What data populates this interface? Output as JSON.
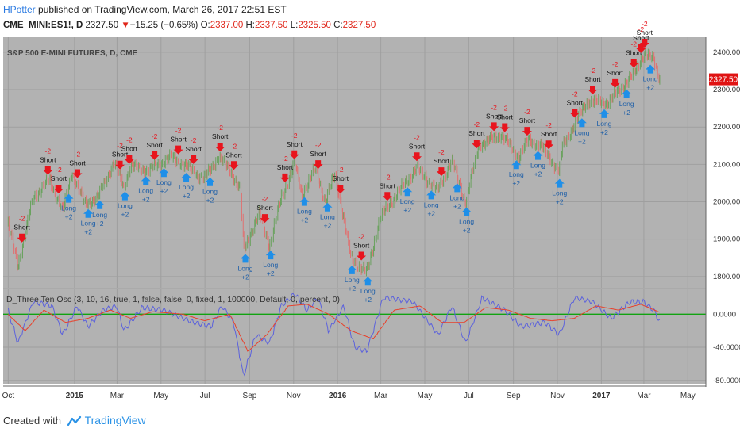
{
  "header": {
    "author": "HPotter",
    "published_text": " published on TradingView.com, March 26, 2017 22:51 EST",
    "symbol": "CME_MINI:ES1!, D",
    "last": "2327.50",
    "arrow": "▼",
    "change": "−15.25 (−0.65%)",
    "open_label": "O:",
    "open": "2337.00",
    "high_label": "H:",
    "high": "2337.50",
    "low_label": "L:",
    "low": "2325.50",
    "close_label": "C:",
    "close": "2327.50"
  },
  "footer": {
    "created_with": "Created with",
    "brand": "TradingView"
  },
  "colors": {
    "background": "#b2b2b2",
    "grid": "#9f9f9f",
    "up_candle": "#6aa25f",
    "down_candle": "#df7272",
    "short_signal": "#e8141d",
    "long_signal": "#1f8fe8",
    "osc_main": "#5c62dc",
    "osc_signal": "#e8402b",
    "zero_line": "#11a311",
    "price_tag": "#e01313"
  },
  "chart_data": [
    {
      "type": "candlestick",
      "title": "S&P 500 E-MINI FUTURES, D, CME",
      "y_ticks": [
        1800,
        1900,
        2000,
        2100,
        2200,
        2300,
        2400
      ],
      "y_tick_labels": [
        "1800.00",
        "1900.00",
        "2000.00",
        "2100.00",
        "2200.00",
        "2300.00",
        "2400.00"
      ],
      "ylim": [
        1770,
        2440
      ],
      "last_price_label": "2327.50",
      "x_tick_labels": [
        "Oct",
        "2015",
        "Mar",
        "May",
        "Jul",
        "Sep",
        "Nov",
        "2016",
        "Mar",
        "May",
        "Jul",
        "Sep",
        "Nov",
        "2017",
        "Mar",
        "May"
      ],
      "x_tick_dates": [
        "2014-10-01",
        "2015-01-01",
        "2015-03-01",
        "2015-05-01",
        "2015-07-01",
        "2015-09-01",
        "2015-11-01",
        "2016-01-01",
        "2016-03-01",
        "2016-05-01",
        "2016-07-01",
        "2016-09-01",
        "2016-11-01",
        "2017-01-01",
        "2017-03-01",
        "2017-05-01"
      ],
      "series": [
        {
          "points": [
            [
              "2014-10-01",
              1940
            ],
            [
              "2014-10-15",
              1830
            ],
            [
              "2014-11-05",
              2010
            ],
            [
              "2014-11-28",
              2060
            ],
            [
              "2014-12-16",
              1975
            ],
            [
              "2014-12-29",
              2080
            ],
            [
              "2015-01-15",
              1995
            ],
            [
              "2015-02-02",
              2010
            ],
            [
              "2015-02-25",
              2105
            ],
            [
              "2015-03-11",
              2040
            ],
            [
              "2015-03-20",
              2095
            ],
            [
              "2015-04-15",
              2085
            ],
            [
              "2015-05-15",
              2120
            ],
            [
              "2015-06-10",
              2090
            ],
            [
              "2015-06-30",
              2060
            ],
            [
              "2015-07-20",
              2120
            ],
            [
              "2015-08-05",
              2085
            ],
            [
              "2015-08-20",
              2030
            ],
            [
              "2015-08-24",
              1870
            ],
            [
              "2015-09-15",
              1970
            ],
            [
              "2015-09-29",
              1880
            ],
            [
              "2015-10-15",
              2010
            ],
            [
              "2015-11-03",
              2100
            ],
            [
              "2015-11-13",
              2020
            ],
            [
              "2015-12-02",
              2090
            ],
            [
              "2015-12-15",
              2000
            ],
            [
              "2015-12-29",
              2075
            ],
            [
              "2016-01-20",
              1850
            ],
            [
              "2016-02-11",
              1810
            ],
            [
              "2016-03-01",
              1960
            ],
            [
              "2016-03-31",
              2040
            ],
            [
              "2016-04-20",
              2090
            ],
            [
              "2016-05-19",
              2030
            ],
            [
              "2016-06-08",
              2110
            ],
            [
              "2016-06-27",
              1995
            ],
            [
              "2016-07-15",
              2150
            ],
            [
              "2016-08-15",
              2180
            ],
            [
              "2016-09-09",
              2120
            ],
            [
              "2016-09-22",
              2165
            ],
            [
              "2016-10-10",
              2150
            ],
            [
              "2016-11-04",
              2080
            ],
            [
              "2016-11-09",
              2150
            ],
            [
              "2016-12-13",
              2270
            ],
            [
              "2017-01-10",
              2265
            ],
            [
              "2017-02-15",
              2340
            ],
            [
              "2017-03-01",
              2395
            ],
            [
              "2017-03-15",
              2380
            ],
            [
              "2017-03-24",
              2327.5
            ]
          ]
        }
      ],
      "signals": [
        {
          "date": "2014-10-20",
          "type": "short",
          "text": "Short",
          "delta": "-2"
        },
        {
          "date": "2014-11-25",
          "type": "short",
          "text": "Short",
          "delta": "-2"
        },
        {
          "date": "2014-12-10",
          "type": "short",
          "text": "Short",
          "delta": "-2"
        },
        {
          "date": "2014-12-24",
          "type": "long",
          "text": "Long",
          "delta": "+2"
        },
        {
          "date": "2015-01-05",
          "type": "short",
          "text": "Short",
          "delta": "-2"
        },
        {
          "date": "2015-01-20",
          "type": "long",
          "text": "Long",
          "delta": "+2"
        },
        {
          "date": "2015-02-05",
          "type": "long",
          "text": "Long",
          "delta": "+2"
        },
        {
          "date": "2015-03-05",
          "type": "short",
          "text": "Short",
          "delta": "-2"
        },
        {
          "date": "2015-03-12",
          "type": "long",
          "text": "Long",
          "delta": "+2"
        },
        {
          "date": "2015-03-18",
          "type": "short",
          "text": "Short",
          "delta": "-2"
        },
        {
          "date": "2015-04-10",
          "type": "long",
          "text": "Long",
          "delta": "+2"
        },
        {
          "date": "2015-04-22",
          "type": "short",
          "text": "Short",
          "delta": "-2"
        },
        {
          "date": "2015-05-05",
          "type": "long",
          "text": "Long",
          "delta": "+2"
        },
        {
          "date": "2015-05-25",
          "type": "short",
          "text": "Short",
          "delta": "-2"
        },
        {
          "date": "2015-06-05",
          "type": "long",
          "text": "Long",
          "delta": "+2"
        },
        {
          "date": "2015-06-15",
          "type": "short",
          "text": "Short",
          "delta": "-2"
        },
        {
          "date": "2015-07-08",
          "type": "long",
          "text": "Long",
          "delta": "+2"
        },
        {
          "date": "2015-07-22",
          "type": "short",
          "text": "Short",
          "delta": "-2"
        },
        {
          "date": "2015-08-10",
          "type": "short",
          "text": "Short",
          "delta": "-2"
        },
        {
          "date": "2015-08-26",
          "type": "long",
          "text": "Long",
          "delta": "+2"
        },
        {
          "date": "2015-09-22",
          "type": "short",
          "text": "Short",
          "delta": "-2"
        },
        {
          "date": "2015-09-30",
          "type": "long",
          "text": "Long",
          "delta": "+2"
        },
        {
          "date": "2015-10-20",
          "type": "short",
          "text": "Short",
          "delta": "-2"
        },
        {
          "date": "2015-11-02",
          "type": "short",
          "text": "Short",
          "delta": "-2"
        },
        {
          "date": "2015-11-16",
          "type": "long",
          "text": "Long",
          "delta": "+2"
        },
        {
          "date": "2015-12-05",
          "type": "short",
          "text": "Short",
          "delta": "-2"
        },
        {
          "date": "2015-12-18",
          "type": "long",
          "text": "Long",
          "delta": "+2"
        },
        {
          "date": "2016-01-05",
          "type": "short",
          "text": "Short",
          "delta": "-2"
        },
        {
          "date": "2016-01-21",
          "type": "long",
          "text": "Long",
          "delta": "+2"
        },
        {
          "date": "2016-02-03",
          "type": "short",
          "text": "Short",
          "delta": "-2"
        },
        {
          "date": "2016-02-12",
          "type": "long",
          "text": "Long",
          "delta": "+2"
        },
        {
          "date": "2016-03-10",
          "type": "short",
          "text": "Short",
          "delta": "-2"
        },
        {
          "date": "2016-04-07",
          "type": "long",
          "text": "Long",
          "delta": "+2"
        },
        {
          "date": "2016-04-20",
          "type": "short",
          "text": "Short",
          "delta": "-2"
        },
        {
          "date": "2016-05-10",
          "type": "long",
          "text": "Long",
          "delta": "+2"
        },
        {
          "date": "2016-05-24",
          "type": "short",
          "text": "Short",
          "delta": "-2"
        },
        {
          "date": "2016-06-15",
          "type": "long",
          "text": "Long",
          "delta": "+2"
        },
        {
          "date": "2016-06-28",
          "type": "long",
          "text": "Long",
          "delta": "+2"
        },
        {
          "date": "2016-07-12",
          "type": "short",
          "text": "Short",
          "delta": "-2"
        },
        {
          "date": "2016-08-05",
          "type": "short",
          "text": "Short",
          "delta": "-2"
        },
        {
          "date": "2016-08-20",
          "type": "short",
          "text": "Short",
          "delta": "-2"
        },
        {
          "date": "2016-09-05",
          "type": "long",
          "text": "Long",
          "delta": "+2"
        },
        {
          "date": "2016-09-20",
          "type": "short",
          "text": "Short",
          "delta": "-2"
        },
        {
          "date": "2016-10-05",
          "type": "long",
          "text": "Long",
          "delta": "+2"
        },
        {
          "date": "2016-10-20",
          "type": "short",
          "text": "Short",
          "delta": "-2"
        },
        {
          "date": "2016-11-04",
          "type": "long",
          "text": "Long",
          "delta": "+2"
        },
        {
          "date": "2016-11-25",
          "type": "short",
          "text": "Short",
          "delta": "-2"
        },
        {
          "date": "2016-12-05",
          "type": "long",
          "text": "Long",
          "delta": "+2"
        },
        {
          "date": "2016-12-20",
          "type": "short",
          "text": "Short",
          "delta": "-2"
        },
        {
          "date": "2017-01-05",
          "type": "long",
          "text": "Long",
          "delta": "+2"
        },
        {
          "date": "2017-01-20",
          "type": "short",
          "text": "Short",
          "delta": "-2"
        },
        {
          "date": "2017-02-05",
          "type": "long",
          "text": "Long",
          "delta": "+2"
        },
        {
          "date": "2017-02-15",
          "type": "short",
          "text": "Short",
          "delta": "-2"
        },
        {
          "date": "2017-02-25",
          "type": "short",
          "text": "Short",
          "delta": "-2"
        },
        {
          "date": "2017-03-02",
          "type": "short",
          "text": "Short",
          "delta": "-2"
        },
        {
          "date": "2017-03-10",
          "type": "long",
          "text": "Long",
          "delta": "+2"
        }
      ]
    },
    {
      "type": "line",
      "title": "D_Three Ten Osc (3, 10, 16, true, 1, false, false, 0, fixed, 1, 100000, Default, 0, percent, 0)",
      "y_ticks": [
        0,
        -40,
        -80
      ],
      "y_tick_labels": [
        "0.0000",
        "-40.0000",
        "-80.0000"
      ],
      "ylim": [
        -85,
        30
      ],
      "series": [
        {
          "values": [
            [
              "2014-10-01",
              5
            ],
            [
              "2014-10-15",
              -35
            ],
            [
              "2014-11-05",
              15
            ],
            [
              "2014-12-01",
              10
            ],
            [
              "2014-12-16",
              -25
            ],
            [
              "2015-01-05",
              10
            ],
            [
              "2015-01-20",
              -15
            ],
            [
              "2015-02-10",
              5
            ],
            [
              "2015-03-01",
              10
            ],
            [
              "2015-03-11",
              -20
            ],
            [
              "2015-04-05",
              8
            ],
            [
              "2015-05-05",
              5
            ],
            [
              "2015-06-15",
              -10
            ],
            [
              "2015-07-10",
              -15
            ],
            [
              "2015-07-25",
              10
            ],
            [
              "2015-08-10",
              -10
            ],
            [
              "2015-08-24",
              -75
            ],
            [
              "2015-09-10",
              -25
            ],
            [
              "2015-09-29",
              -35
            ],
            [
              "2015-10-15",
              10
            ],
            [
              "2015-11-03",
              25
            ],
            [
              "2015-11-20",
              5
            ],
            [
              "2015-12-05",
              20
            ],
            [
              "2015-12-20",
              -20
            ],
            [
              "2016-01-10",
              10
            ],
            [
              "2016-01-25",
              -40
            ],
            [
              "2016-02-11",
              -45
            ],
            [
              "2016-03-05",
              20
            ],
            [
              "2016-04-15",
              15
            ],
            [
              "2016-05-20",
              -25
            ],
            [
              "2016-06-08",
              10
            ],
            [
              "2016-06-27",
              -35
            ],
            [
              "2016-07-20",
              20
            ],
            [
              "2016-08-20",
              5
            ],
            [
              "2016-09-12",
              -15
            ],
            [
              "2016-10-15",
              -10
            ],
            [
              "2016-11-04",
              -25
            ],
            [
              "2016-11-25",
              20
            ],
            [
              "2016-12-20",
              15
            ],
            [
              "2017-01-15",
              -5
            ],
            [
              "2017-02-10",
              15
            ],
            [
              "2017-03-01",
              15
            ],
            [
              "2017-03-15",
              5
            ],
            [
              "2017-03-24",
              -10
            ]
          ]
        },
        {
          "values": [
            [
              "2014-10-01",
              0
            ],
            [
              "2014-10-25",
              -20
            ],
            [
              "2014-11-20",
              5
            ],
            [
              "2014-12-20",
              -10
            ],
            [
              "2015-01-20",
              -5
            ],
            [
              "2015-02-20",
              5
            ],
            [
              "2015-03-20",
              -5
            ],
            [
              "2015-04-20",
              3
            ],
            [
              "2015-06-01",
              0
            ],
            [
              "2015-07-01",
              -8
            ],
            [
              "2015-08-05",
              0
            ],
            [
              "2015-08-30",
              -45
            ],
            [
              "2015-09-25",
              -25
            ],
            [
              "2015-10-25",
              10
            ],
            [
              "2015-11-20",
              12
            ],
            [
              "2015-12-20",
              0
            ],
            [
              "2016-01-20",
              -20
            ],
            [
              "2016-02-20",
              -30
            ],
            [
              "2016-03-20",
              5
            ],
            [
              "2016-04-25",
              10
            ],
            [
              "2016-05-25",
              -10
            ],
            [
              "2016-06-25",
              -10
            ],
            [
              "2016-07-25",
              8
            ],
            [
              "2016-08-25",
              5
            ],
            [
              "2016-09-25",
              -5
            ],
            [
              "2016-10-25",
              -8
            ],
            [
              "2016-11-25",
              -5
            ],
            [
              "2016-12-25",
              10
            ],
            [
              "2017-01-25",
              5
            ],
            [
              "2017-02-25",
              12
            ],
            [
              "2017-03-24",
              2
            ]
          ]
        }
      ]
    }
  ]
}
